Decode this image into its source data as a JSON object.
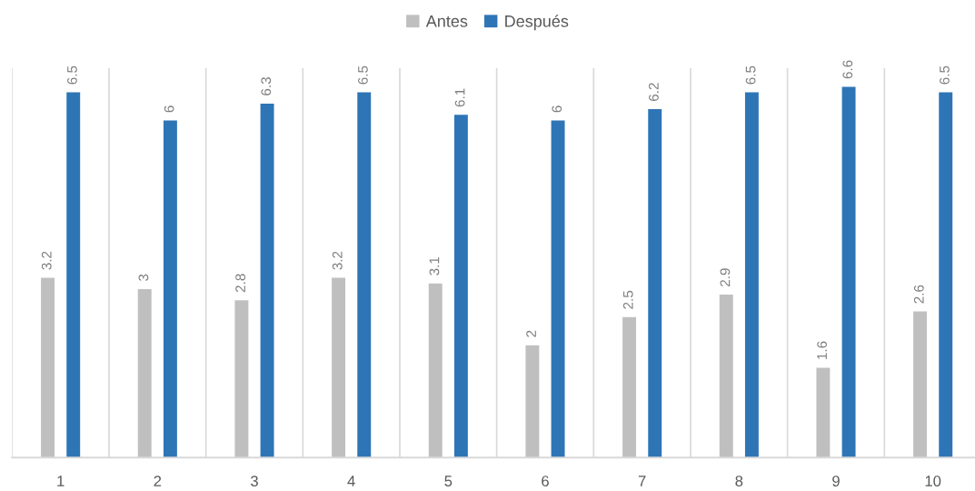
{
  "chart_data": {
    "type": "bar",
    "categories": [
      "1",
      "2",
      "3",
      "4",
      "5",
      "6",
      "7",
      "8",
      "9",
      "10"
    ],
    "series": [
      {
        "name": "Antes",
        "color": "#bfbfbf",
        "values": [
          3.2,
          3,
          2.8,
          3.2,
          3.1,
          2,
          2.5,
          2.9,
          1.6,
          2.6
        ]
      },
      {
        "name": "Después",
        "color": "#2e75b6",
        "values": [
          6.5,
          6,
          6.3,
          6.5,
          6.1,
          6,
          6.2,
          6.5,
          6.6,
          6.5
        ]
      }
    ],
    "data_labels": true,
    "grid": "x",
    "legend": "top",
    "tick_labels": "x"
  }
}
